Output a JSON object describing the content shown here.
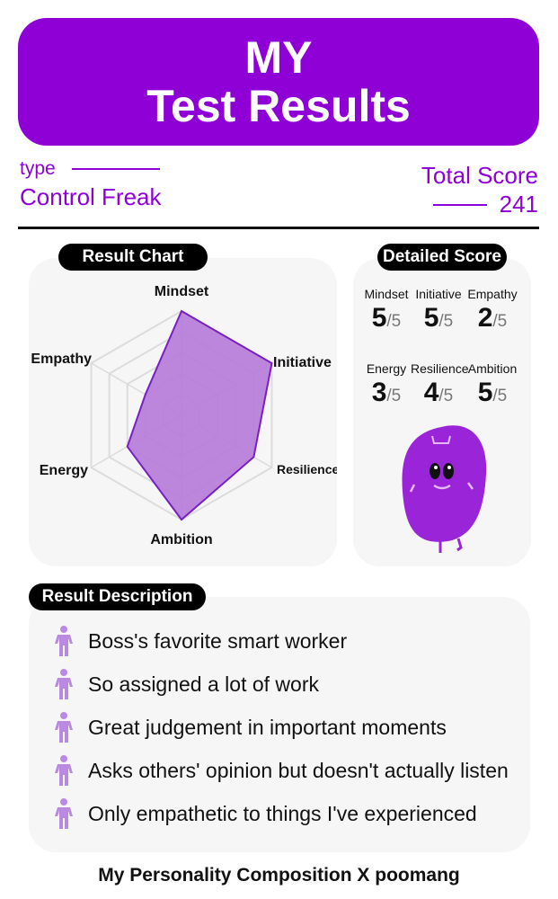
{
  "header": {
    "line1": "MY",
    "line2": "Test Results"
  },
  "type": {
    "label": "type",
    "value": "Control Freak"
  },
  "total": {
    "label": "Total Score",
    "value": "241"
  },
  "colors": {
    "accent": "#8f00d6",
    "radar_fill": "#b57ad9",
    "icon": "#b98ae0"
  },
  "chart_section": {
    "title": "Result Chart"
  },
  "chart_data": {
    "type": "radar",
    "axes": [
      "Mindset",
      "Initiative",
      "Resilience",
      "Ambition",
      "Energy",
      "Empathy"
    ],
    "values": [
      5,
      5,
      4,
      5,
      3,
      2
    ],
    "max": 5,
    "rings": 5
  },
  "detail": {
    "title": "Detailed Score",
    "denominator": "/5",
    "scores": [
      {
        "name": "Mindset",
        "value": "5"
      },
      {
        "name": "Initiative",
        "value": "5"
      },
      {
        "name": "Empathy",
        "value": "2"
      },
      {
        "name": "Energy",
        "value": "3"
      },
      {
        "name": "Resilience",
        "value": "4"
      },
      {
        "name": "Ambition",
        "value": "5"
      }
    ]
  },
  "description": {
    "title": "Result Description",
    "items": [
      "Boss's favorite smart worker",
      "So assigned a lot of work",
      "Great judgement in important moments",
      "Asks others' opinion but doesn't actually listen",
      "Only empathetic to things I've experienced"
    ]
  },
  "footer": "My Personality Composition X poomang"
}
